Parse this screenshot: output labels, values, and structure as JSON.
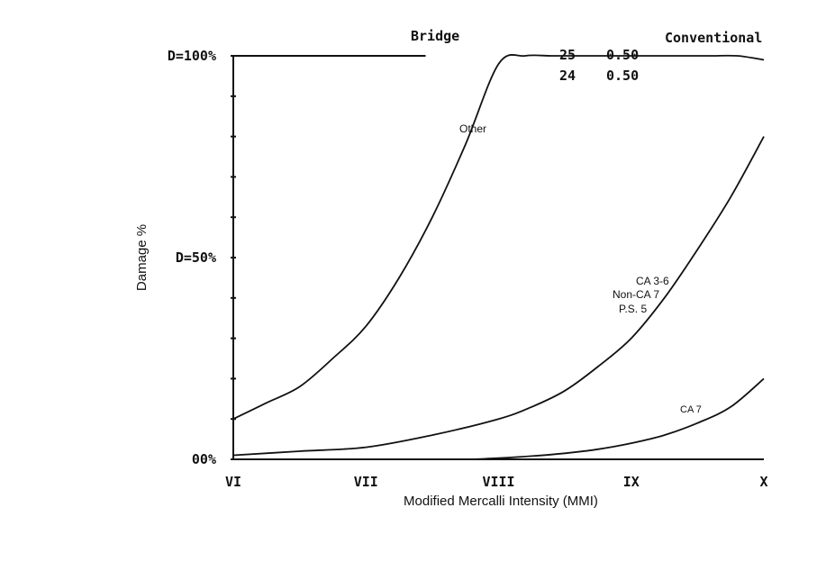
{
  "chart_data": {
    "type": "line",
    "title_left": "Bridge",
    "title_right": "Conventional",
    "xlabel": "Modified Mercalli Intensity (MMI)",
    "ylabel": "Damage %",
    "x_ticks": [
      "VI",
      "VII",
      "VIII",
      "IX",
      "X"
    ],
    "x_range": [
      6,
      10
    ],
    "y_range": [
      0,
      100
    ],
    "y_ticks": [
      {
        "value": 100,
        "label": "D=100%"
      },
      {
        "value": 50,
        "label": "D=50%"
      },
      {
        "value": 0,
        "label": "00%"
      }
    ],
    "legend_table": [
      {
        "a": "25",
        "b": "0.50"
      },
      {
        "a": "24",
        "b": "0.50"
      }
    ],
    "series": [
      {
        "name": "Other",
        "labels": [
          "Other"
        ],
        "x": [
          6.0,
          6.25,
          6.5,
          6.75,
          7.0,
          7.25,
          7.5,
          7.75,
          8.0,
          8.2,
          8.4,
          8.6,
          8.8,
          9.0,
          9.2,
          9.4,
          9.6,
          9.8,
          10.0
        ],
        "y": [
          10,
          14,
          18,
          25,
          33,
          45,
          60,
          78,
          98,
          100,
          100,
          100,
          100,
          100,
          100,
          100,
          100,
          100,
          99
        ]
      },
      {
        "name": "CA 3-6 / Non-CA 7 / P.S. 5",
        "labels": [
          "CA 3-6",
          "Non-CA 7",
          "P.S. 5"
        ],
        "x": [
          6.0,
          6.5,
          7.0,
          7.5,
          8.0,
          8.25,
          8.5,
          8.75,
          9.0,
          9.25,
          9.5,
          9.75,
          10.0
        ],
        "y": [
          1,
          2,
          3,
          6,
          10,
          13,
          17,
          23,
          30,
          40,
          52,
          65,
          80
        ]
      },
      {
        "name": "CA 7",
        "labels": [
          "CA 7"
        ],
        "x": [
          7.8,
          8.0,
          8.25,
          8.5,
          8.75,
          9.0,
          9.25,
          9.5,
          9.75,
          10.0
        ],
        "y": [
          0,
          0.3,
          0.8,
          1.5,
          2.5,
          4,
          6,
          9,
          13,
          20
        ]
      }
    ],
    "bridge_marker_x_end": 7.45,
    "grid": false
  }
}
